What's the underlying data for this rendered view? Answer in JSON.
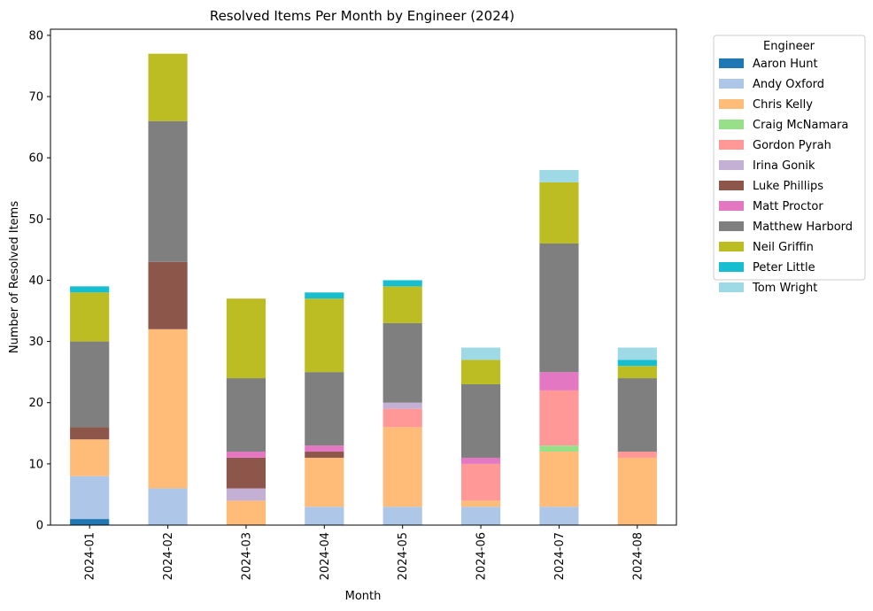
{
  "chart_data": {
    "type": "bar",
    "stacked": true,
    "title": "Resolved Items Per Month by Engineer (2024)",
    "xlabel": "Month",
    "ylabel": "Number of Resolved Items",
    "ylim": [
      0,
      81
    ],
    "yticks": [
      0,
      10,
      20,
      30,
      40,
      50,
      60,
      70,
      80
    ],
    "grid": false,
    "legend_placement": "outside-top-right",
    "legend_title": "Engineer",
    "categories": [
      "2024-01",
      "2024-02",
      "2024-03",
      "2024-04",
      "2024-05",
      "2024-06",
      "2024-07",
      "2024-08"
    ],
    "series": [
      {
        "name": "Aaron Hunt",
        "color": "#1f77b4",
        "values": [
          1,
          0,
          0,
          0,
          0,
          0,
          0,
          0
        ]
      },
      {
        "name": "Andy Oxford",
        "color": "#aec7e8",
        "values": [
          7,
          6,
          0,
          3,
          3,
          3,
          3,
          0
        ]
      },
      {
        "name": "Chris Kelly",
        "color": "#ffbb78",
        "values": [
          6,
          26,
          4,
          8,
          13,
          1,
          9,
          11
        ]
      },
      {
        "name": "Craig McNamara",
        "color": "#98df8a",
        "values": [
          0,
          0,
          0,
          0,
          0,
          0,
          1,
          0
        ]
      },
      {
        "name": "Gordon Pyrah",
        "color": "#ff9896",
        "values": [
          0,
          0,
          0,
          0,
          3,
          6,
          9,
          1
        ]
      },
      {
        "name": "Irina Gonik",
        "color": "#c5b0d5",
        "values": [
          0,
          0,
          2,
          0,
          1,
          0,
          0,
          0
        ]
      },
      {
        "name": "Luke Phillips",
        "color": "#8c564b",
        "values": [
          2,
          11,
          5,
          1,
          0,
          0,
          0,
          0
        ]
      },
      {
        "name": "Matt Proctor",
        "color": "#e377c2",
        "values": [
          0,
          0,
          1,
          1,
          0,
          1,
          3,
          0
        ]
      },
      {
        "name": "Matthew Harbord",
        "color": "#7f7f7f",
        "values": [
          14,
          23,
          12,
          12,
          13,
          12,
          21,
          12
        ]
      },
      {
        "name": "Neil Griffin",
        "color": "#bcbd22",
        "values": [
          8,
          11,
          13,
          12,
          6,
          4,
          10,
          2
        ]
      },
      {
        "name": "Peter Little",
        "color": "#17becf",
        "values": [
          1,
          0,
          0,
          1,
          1,
          0,
          0,
          1
        ]
      },
      {
        "name": "Tom Wright",
        "color": "#9edae5",
        "values": [
          0,
          0,
          0,
          0,
          0,
          2,
          2,
          2
        ]
      }
    ]
  }
}
